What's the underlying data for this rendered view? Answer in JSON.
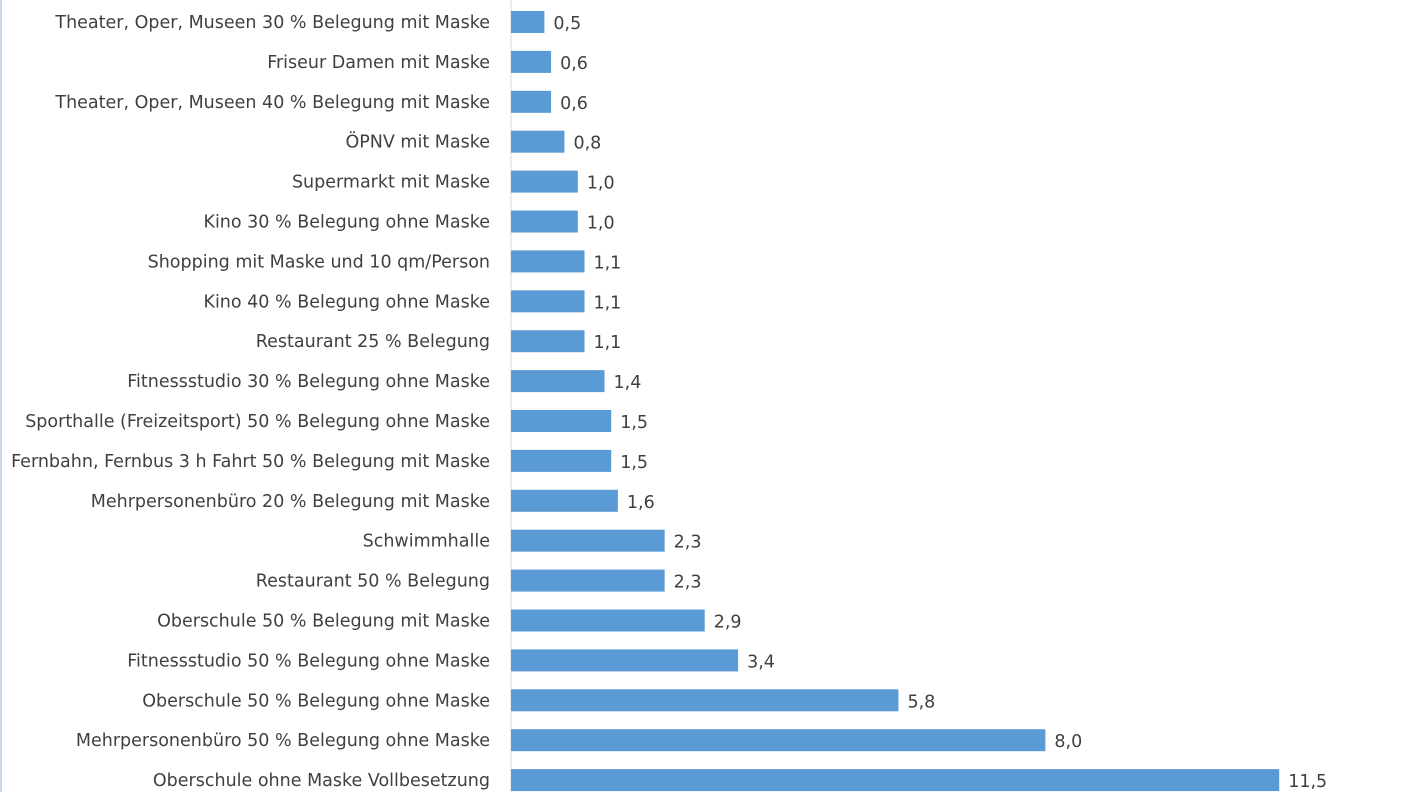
{
  "chart_data": {
    "type": "bar",
    "orientation": "horizontal",
    "categories": [
      "Theater, Oper, Museen 30 % Belegung mit Maske",
      "Friseur Damen mit Maske",
      "Theater, Oper, Museen 40 % Belegung mit Maske",
      "ÖPNV mit Maske",
      "Supermarkt mit Maske",
      "Kino 30 % Belegung ohne Maske",
      "Shopping mit Maske und 10 qm/Person",
      "Kino 40 % Belegung ohne Maske",
      "Restaurant 25 % Belegung",
      "Fitnessstudio 30 % Belegung ohne Maske",
      "Sporthalle  (Freizeitsport) 50 % Belegung ohne Maske",
      "Fernbahn, Fernbus 3 h Fahrt 50 % Belegung mit Maske",
      "Mehrpersonenbüro 20 % Belegung mit Maske",
      "Schwimmhalle",
      "Restaurant 50 % Belegung",
      "Oberschule 50 % Belegung mit Maske",
      "Fitnessstudio 50 % Belegung ohne Maske",
      "Oberschule 50 % Belegung ohne Maske",
      "Mehrpersonenbüro 50 % Belegung ohne Maske",
      "Oberschule ohne Maske Vollbesetzung"
    ],
    "values": [
      0.5,
      0.6,
      0.6,
      0.8,
      1.0,
      1.0,
      1.1,
      1.1,
      1.1,
      1.4,
      1.5,
      1.5,
      1.6,
      2.3,
      2.3,
      2.9,
      3.4,
      5.8,
      8.0,
      11.5
    ],
    "value_labels": [
      "0,5",
      "0,6",
      "0,6",
      "0,8",
      "1,0",
      "1,0",
      "1,1",
      "1,1",
      "1,1",
      "1,4",
      "1,5",
      "1,5",
      "1,6",
      "2,3",
      "2,3",
      "2,9",
      "3,4",
      "5,8",
      "8,0",
      "11,5"
    ],
    "title": "",
    "xlabel": "",
    "ylabel": "",
    "grid": false,
    "legend": "none",
    "bar_color": "#5b9bd5",
    "text_color": "#404040"
  }
}
